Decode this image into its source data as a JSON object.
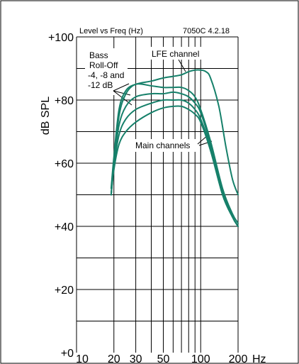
{
  "chart_data": {
    "type": "line",
    "title": "Level vs Freq (Hz)",
    "code": "7050C 4.2.18",
    "ylabel": "dB SPL",
    "x_unit": "Hz",
    "x_scale": "log",
    "xlim": [
      10,
      200
    ],
    "ylim": [
      0,
      100
    ],
    "x_ticks": [
      {
        "v": 10,
        "label": "10"
      },
      {
        "v": 20,
        "label": "20"
      },
      {
        "v": 30,
        "label": "30"
      },
      {
        "v": 50,
        "label": "50"
      },
      {
        "v": 100,
        "label": "100"
      },
      {
        "v": 200,
        "label": "200"
      }
    ],
    "y_ticks": [
      {
        "v": 0,
        "label": "+0"
      },
      {
        "v": 20,
        "label": "+20"
      },
      {
        "v": 40,
        "label": "+40"
      },
      {
        "v": 60,
        "label": "+60"
      },
      {
        "v": 80,
        "label": "+80"
      },
      {
        "v": 100,
        "label": "+100"
      }
    ],
    "grid": true,
    "line_color": "#16806a",
    "series": [
      {
        "x": [
          19,
          20,
          22,
          25,
          30,
          40,
          50,
          60,
          70,
          80,
          90,
          100,
          110,
          120,
          140,
          160,
          180,
          200
        ],
        "y": [
          52,
          62,
          77,
          83,
          85,
          86,
          87,
          87.5,
          88,
          89,
          89.5,
          89.5,
          89,
          87,
          78,
          65,
          55,
          50
        ]
      },
      {
        "x": [
          19,
          20,
          22,
          25,
          30,
          40,
          50,
          60,
          70,
          80,
          90,
          100,
          120,
          150,
          180,
          200
        ],
        "y": [
          50,
          60,
          75,
          82,
          85,
          84.5,
          84,
          84,
          84,
          83,
          81,
          77,
          67,
          52,
          44,
          41
        ]
      },
      {
        "x": [
          19,
          20,
          22,
          25,
          30,
          40,
          50,
          60,
          70,
          80,
          90,
          100,
          120,
          150,
          180,
          200
        ],
        "y": [
          50,
          60,
          72,
          78,
          81,
          82,
          82,
          82.5,
          82,
          81,
          79,
          76,
          66,
          51,
          43,
          40
        ]
      },
      {
        "x": [
          19,
          20,
          22,
          25,
          30,
          40,
          50,
          60,
          70,
          80,
          90,
          100,
          120,
          150,
          180,
          200
        ],
        "y": [
          50,
          59,
          69,
          74,
          77,
          79,
          80,
          80,
          80,
          79,
          77,
          74,
          65,
          50,
          43,
          40
        ]
      },
      {
        "x": [
          19,
          20,
          22,
          25,
          30,
          40,
          50,
          60,
          70,
          80,
          90,
          100,
          120,
          150,
          180,
          200
        ],
        "y": [
          50,
          58,
          66,
          70,
          73,
          76,
          77.5,
          78,
          78,
          77,
          75.5,
          73,
          64,
          50,
          43,
          40
        ]
      }
    ],
    "annotations": {
      "bass_rolloff": [
        "Bass",
        "Roll-Off",
        "-4, -8 and",
        "-12 dB"
      ],
      "lfe": "LFE channel",
      "main": "Main channels"
    }
  }
}
